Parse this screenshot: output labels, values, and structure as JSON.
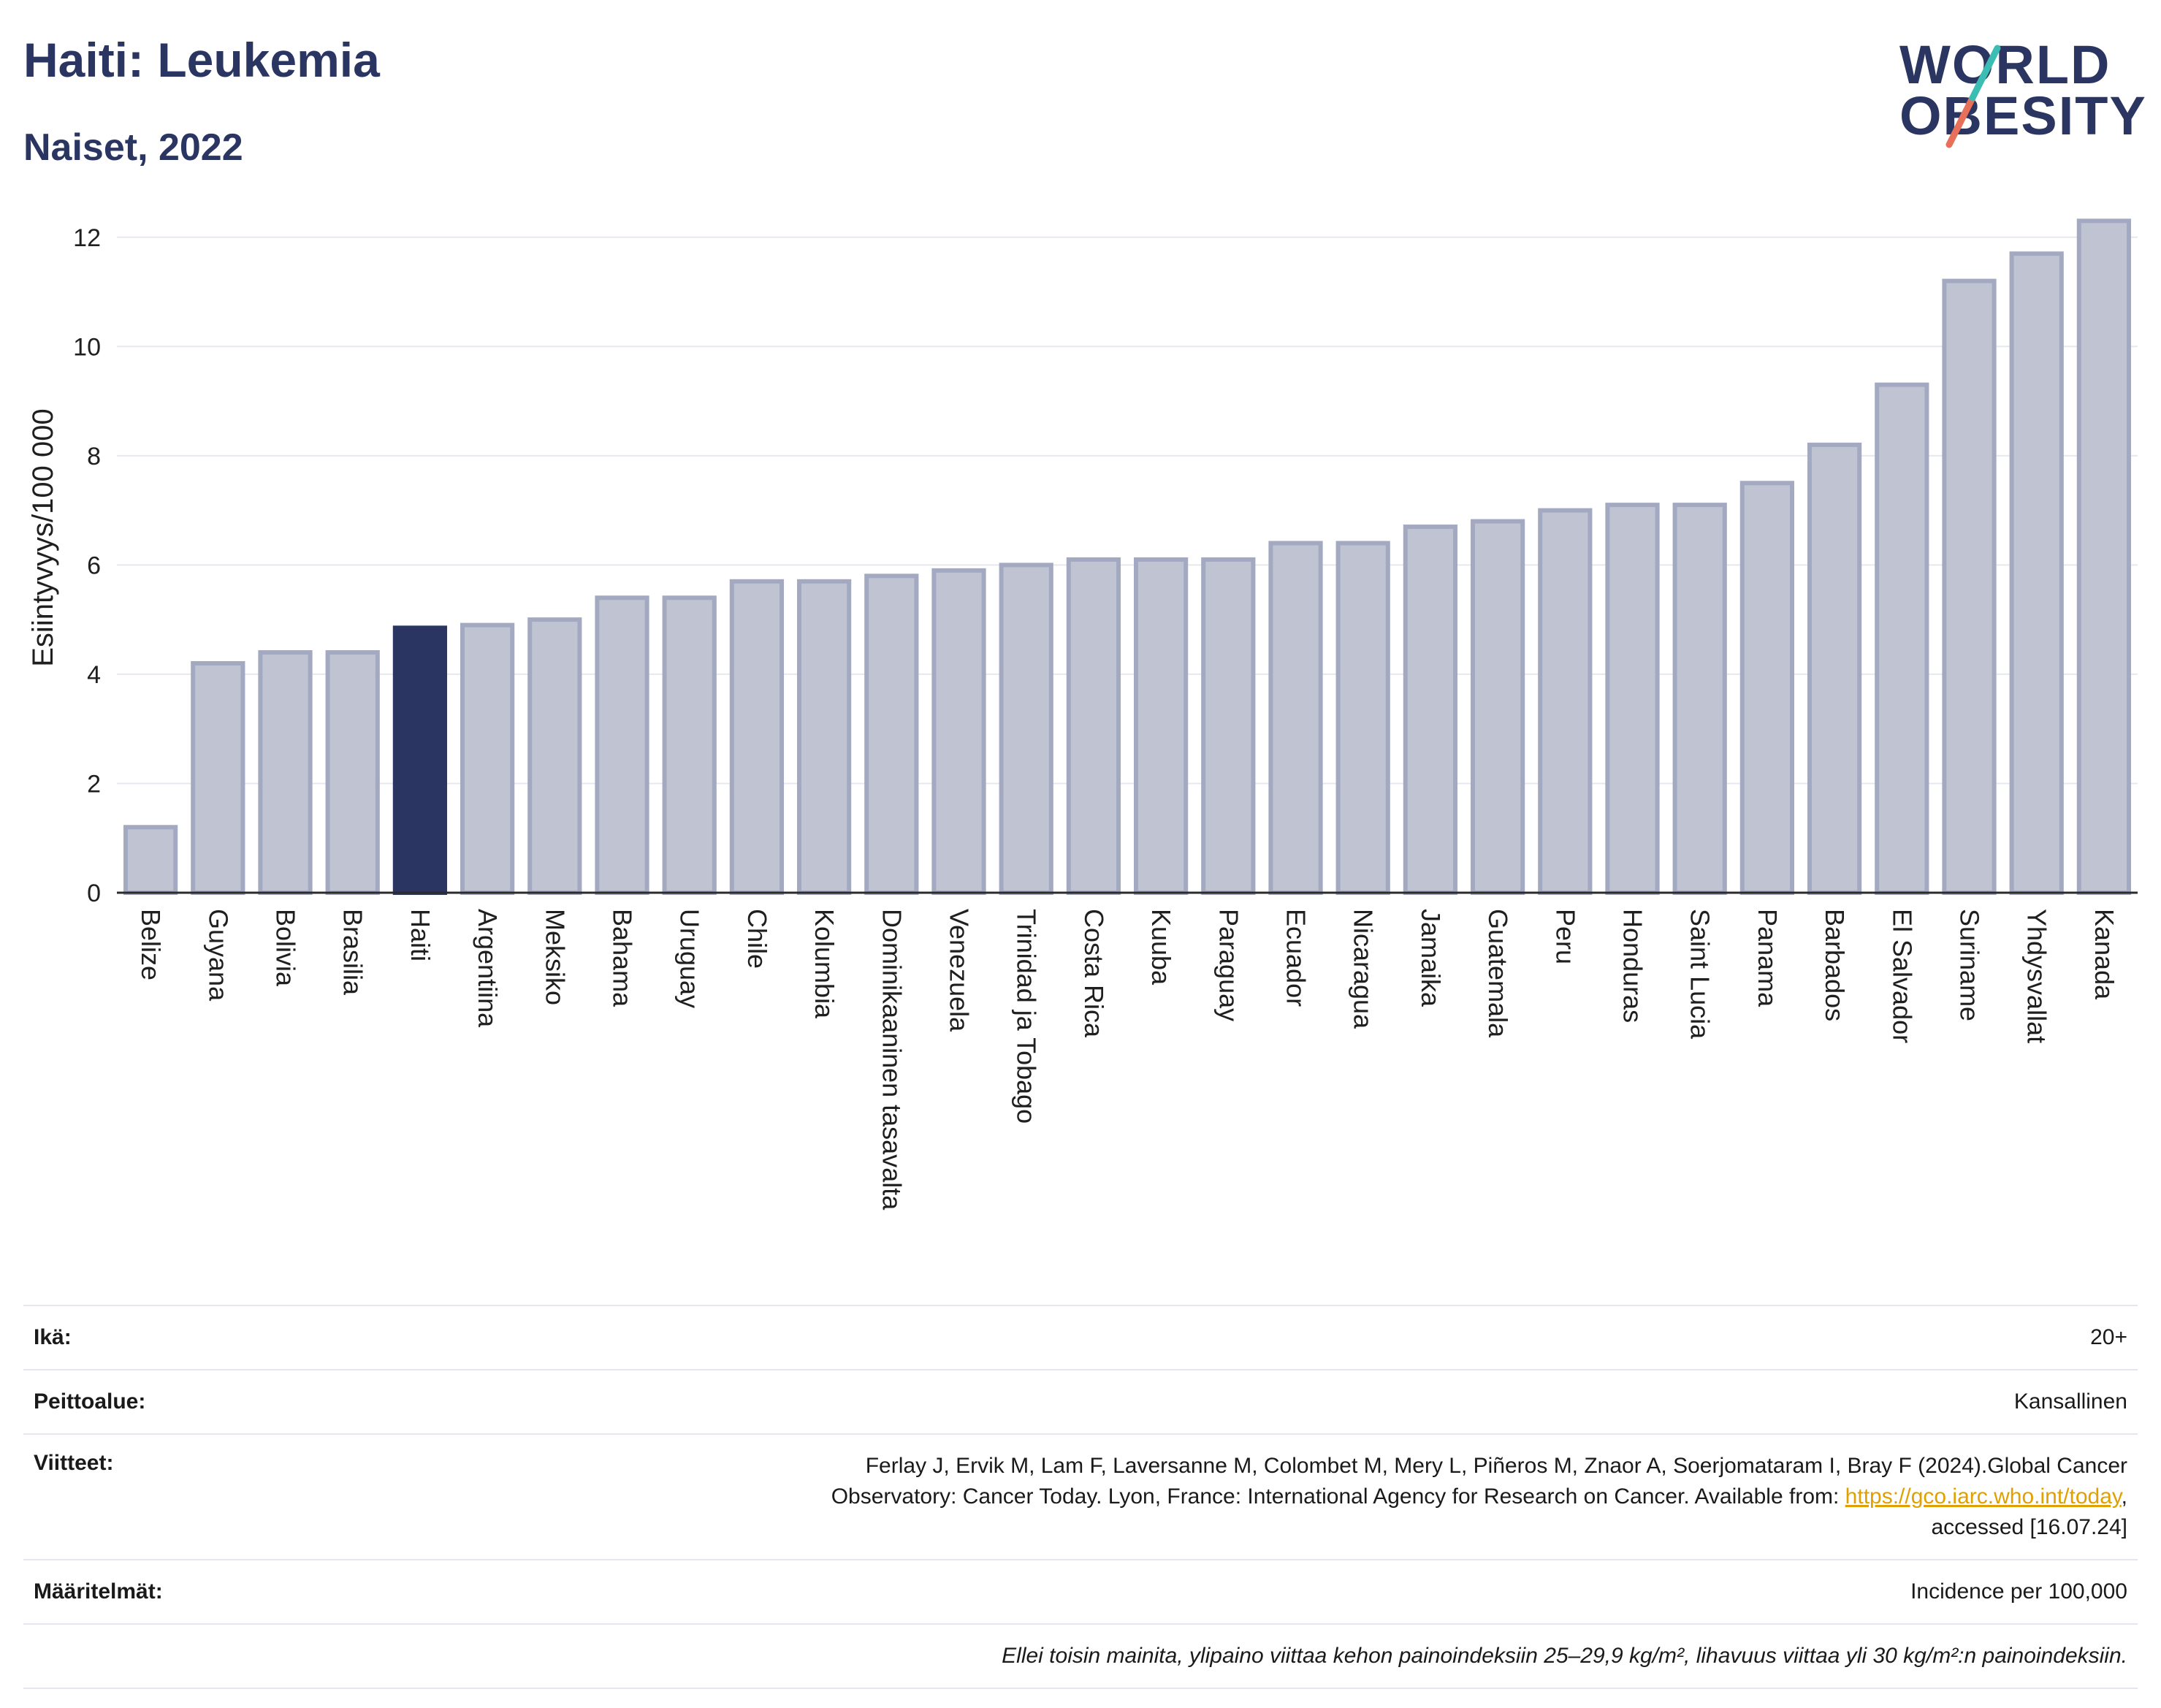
{
  "header": {
    "title": "Haiti: Leukemia",
    "subtitle": "Naiset, 2022"
  },
  "logo": {
    "line1": "WORLD",
    "line2": "OBESITY"
  },
  "chart_data": {
    "type": "bar",
    "ylabel": "Esiintyvyys/100 000",
    "xlabel": "",
    "ylim": [
      0,
      13
    ],
    "yticks": [
      0,
      2,
      4,
      6,
      8,
      10,
      12
    ],
    "grid": true,
    "highlight": "Haiti",
    "colors": {
      "bar": "#c0c4d2",
      "bar_edge": "#a3a9c0",
      "highlight": "#2b3561"
    },
    "categories": [
      "Belize",
      "Guyana",
      "Bolivia",
      "Brasilia",
      "Haiti",
      "Argentiina",
      "Meksiko",
      "Bahama",
      "Uruguay",
      "Chile",
      "Kolumbia",
      "Dominikaaninen tasavalta",
      "Venezuela",
      "Trinidad ja Tobago",
      "Costa Rica",
      "Kuuba",
      "Paraguay",
      "Ecuador",
      "Nicaragua",
      "Jamaika",
      "Guatemala",
      "Peru",
      "Honduras",
      "Saint Lucia",
      "Panama",
      "Barbados",
      "El Salvador",
      "Suriname",
      "Yhdysvallat",
      "Kanada"
    ],
    "values": [
      1.2,
      4.2,
      4.4,
      4.4,
      4.85,
      4.9,
      5.0,
      5.4,
      5.4,
      5.7,
      5.7,
      5.8,
      5.9,
      6.0,
      6.1,
      6.1,
      6.1,
      6.4,
      6.4,
      6.7,
      6.8,
      7.0,
      7.1,
      7.1,
      7.5,
      8.2,
      9.3,
      11.2,
      11.7,
      12.3
    ]
  },
  "info": {
    "age_label": "Ikä:",
    "age_value": "20+",
    "coverage_label": "Peittoalue:",
    "coverage_value": "Kansallinen",
    "refs_label": "Viitteet:",
    "refs_text_1": "Ferlay J, Ervik M, Lam F, Laversanne M, Colombet M, Mery L, Piñeros M, Znaor A, Soerjomataram I, Bray F (2024).Global Cancer",
    "refs_text_2": "Observatory: Cancer Today. Lyon, France: International Agency for Research on Cancer. Available from: ",
    "refs_link": "https://gco.iarc.who.int/today",
    "refs_text_3": ",",
    "refs_text_4": "accessed [16.07.24]",
    "def_label": "Määritelmät:",
    "def_value": "Incidence per 100,000",
    "note": "Ellei toisin mainita, ylipaino viittaa kehon painoindeksiin 25–29,9 kg/m², lihavuus viittaa yli 30 kg/m²:n painoindeksiin."
  }
}
